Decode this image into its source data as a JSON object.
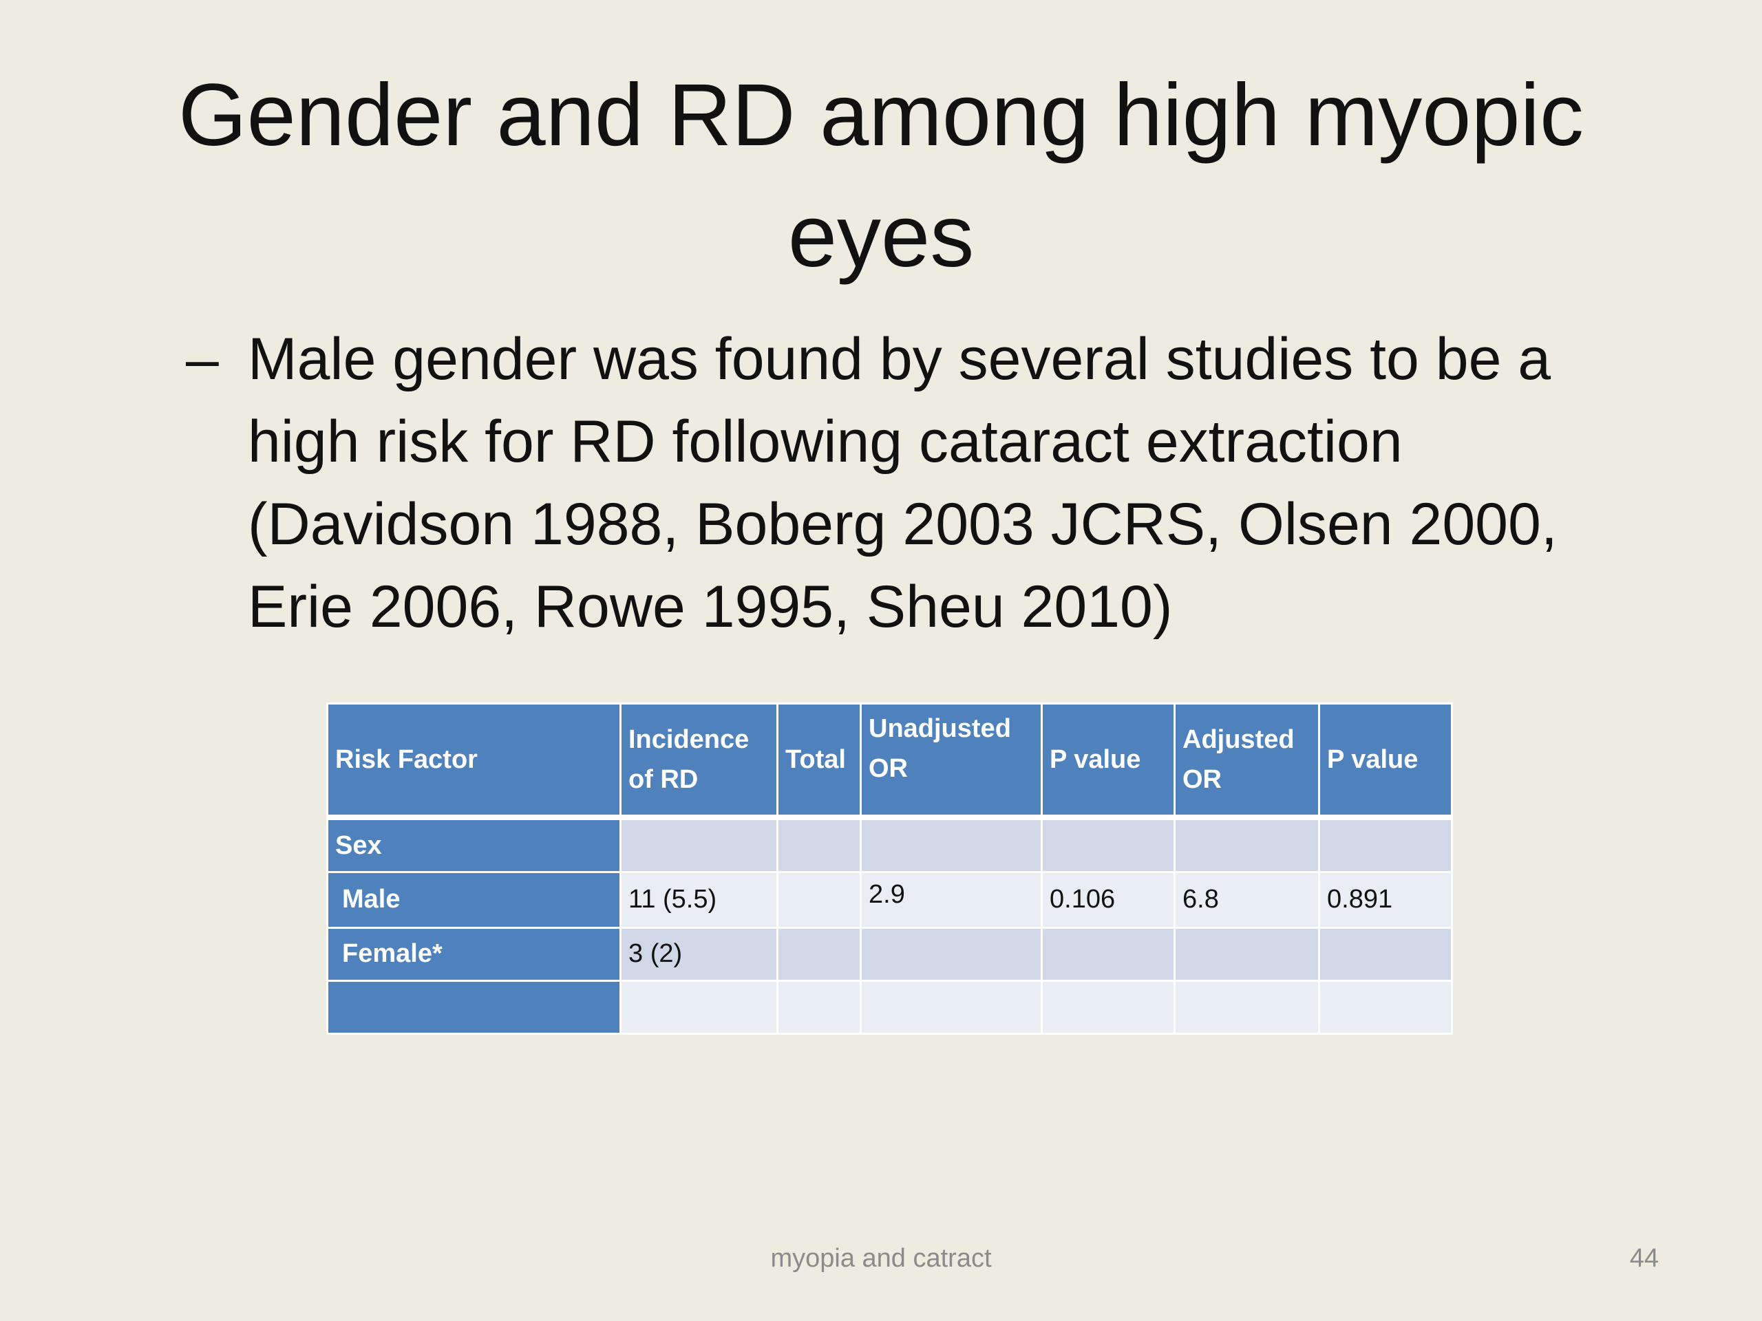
{
  "slide": {
    "title_line1": "Gender and RD among high myopic",
    "title_line2": "eyes",
    "bullet_marker": "–",
    "bullet_text": "Male gender was found by several studies to be a high risk for RD following cataract extraction (Davidson 1988, Boberg 2003 JCRS, Olsen 2000, Erie 2006, Rowe 1995, Sheu 2010)"
  },
  "table": {
    "headers": {
      "risk_factor": "Risk Factor",
      "incidence_line1": "Incidence",
      "incidence_line2": "of RD",
      "total": "Total",
      "unadjusted_line1": "Unadjusted",
      "unadjusted_line2": "OR",
      "p_value_1": "P value",
      "adjusted_line1": "Adjusted",
      "adjusted_line2": "OR",
      "p_value_2": "P value"
    },
    "rows": [
      {
        "risk_factor": "Sex",
        "incidence": "",
        "total": "",
        "unadjusted_or": "",
        "p_value_1": "",
        "adjusted_or": "",
        "p_value_2": ""
      },
      {
        "risk_factor": "Male",
        "incidence": "11 (5.5)",
        "total": "",
        "unadjusted_or": "2.9",
        "p_value_1": "0.106",
        "adjusted_or": "6.8",
        "p_value_2": "0.891"
      },
      {
        "risk_factor": "Female*",
        "incidence": "3 (2)",
        "total": "",
        "unadjusted_or": "",
        "p_value_1": "",
        "adjusted_or": "",
        "p_value_2": ""
      },
      {
        "risk_factor": "",
        "incidence": "",
        "total": "",
        "unadjusted_or": "",
        "p_value_1": "",
        "adjusted_or": "",
        "p_value_2": ""
      }
    ]
  },
  "footer": {
    "text": "myopia and catract",
    "page_number": "44"
  }
}
